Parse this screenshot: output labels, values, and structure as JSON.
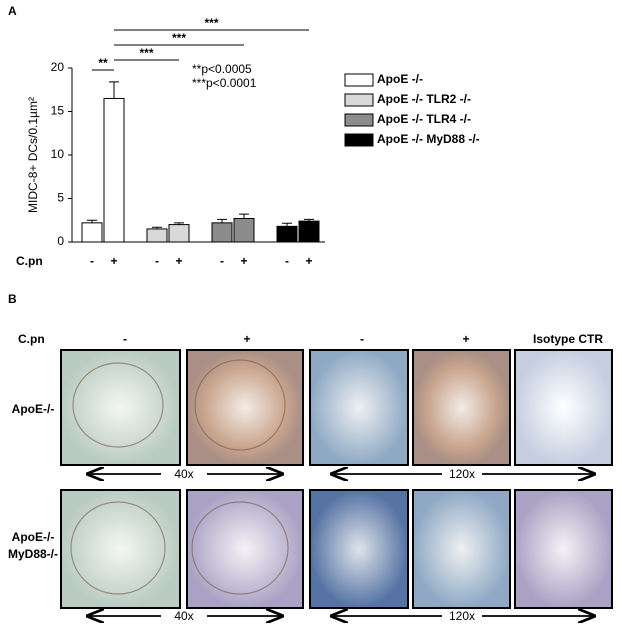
{
  "panel_labels": [
    "A",
    "B"
  ],
  "chart_data": {
    "type": "bar",
    "ylabel": "MIDC-8+ DCs/0.1µm²",
    "xlabel": "C.pn",
    "categories": [
      "-",
      "+"
    ],
    "series": [
      {
        "name": "ApoE -/-",
        "color": "#ffffff",
        "values": [
          2.2,
          16.5
        ],
        "errors": [
          0.3,
          1.9
        ]
      },
      {
        "name": "ApoE -/- TLR2 -/-",
        "color": "#d9d9d9",
        "values": [
          1.5,
          2.0
        ],
        "errors": [
          0.2,
          0.2
        ]
      },
      {
        "name": "ApoE -/- TLR4 -/-",
        "color": "#8c8c8c",
        "values": [
          2.2,
          2.7
        ],
        "errors": [
          0.4,
          0.5
        ]
      },
      {
        "name": "ApoE -/- MyD88 -/-",
        "color": "#000000",
        "values": [
          1.8,
          2.4
        ],
        "errors": [
          0.35,
          0.2
        ]
      }
    ],
    "ylim": [
      0,
      20
    ],
    "yticks": [
      0,
      5,
      10,
      15,
      20
    ],
    "significance": [
      "**",
      "***",
      "***",
      "***"
    ],
    "annotations": [
      "**p<0.0005",
      "***p<0.0001"
    ]
  },
  "panel_b": {
    "treatment_label": "C.pn",
    "columns": [
      "-",
      "+",
      "-",
      "+",
      "Isotype CTR"
    ],
    "rows": [
      [
        "ApoE-/-"
      ],
      [
        "ApoE-/-",
        "MyD88-/-"
      ]
    ],
    "magnifications": [
      "40x",
      "120x"
    ]
  }
}
